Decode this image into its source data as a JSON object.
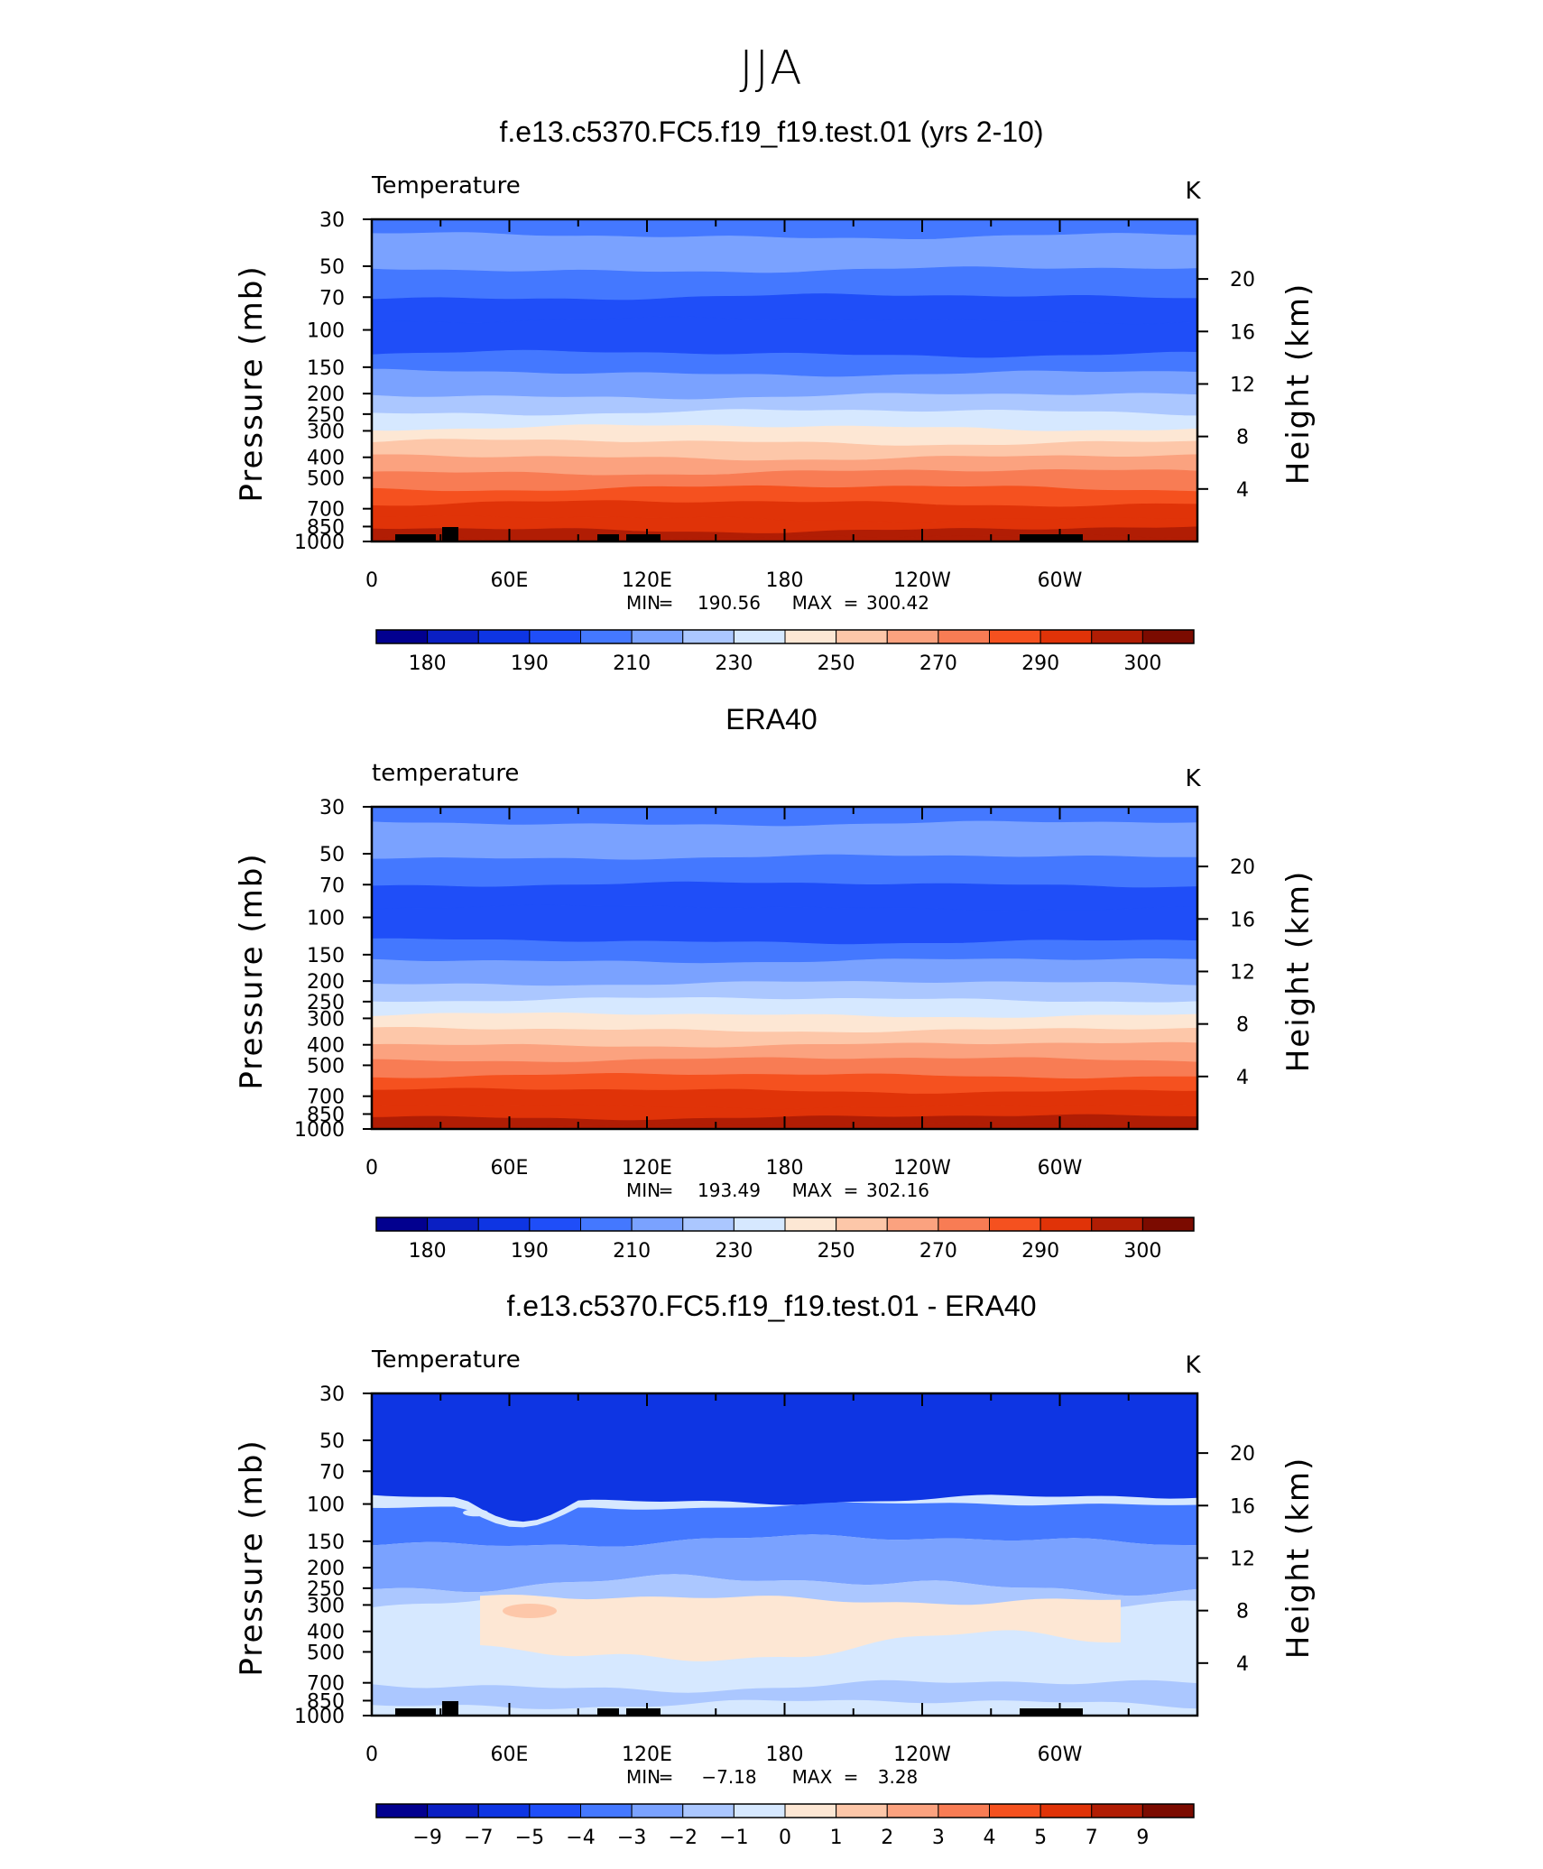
{
  "page_title": "JJA",
  "colors": {
    "abs_palette": [
      "#02008f",
      "#0a1fc3",
      "#0e35e3",
      "#1f4ef8",
      "#4478ff",
      "#7aa2ff",
      "#abc7ff",
      "#d6e8ff",
      "#fde7d4",
      "#fdc7a9",
      "#fba27f",
      "#f87c54",
      "#f5511f",
      "#e03308",
      "#b11d04",
      "#7b0b00"
    ],
    "diff_palette": [
      "#02008f",
      "#0a1fc3",
      "#0e35e3",
      "#1f4ef8",
      "#4478ff",
      "#7aa2ff",
      "#abc7ff",
      "#d6e8ff",
      "#fde7d4",
      "#fdc7a9",
      "#fba27f",
      "#f87c54",
      "#f5511f",
      "#e03308",
      "#b11d04",
      "#7b0b00"
    ],
    "topo": "#000000"
  },
  "chart_data": [
    {
      "type": "contour",
      "title": "f.e13.c5370.FC5.f19_f19.test.01 (yrs 2-10)",
      "variable": "Temperature",
      "units": "K",
      "ylabel": "Pressure (mb)",
      "ylabel_right": "Height (km)",
      "pressure_ticks": [
        30,
        50,
        70,
        100,
        150,
        200,
        250,
        300,
        400,
        500,
        700,
        850,
        1000
      ],
      "height_ticks": [
        20,
        16,
        12,
        8,
        4
      ],
      "x_ticks": [
        "0",
        "60E",
        "120E",
        "180",
        "120W",
        "60W"
      ],
      "stats": {
        "min_label": "MIN",
        "min": "190.56",
        "max_label": "MAX",
        "max": "300.42"
      },
      "colorbar_labels": [
        "180",
        "190",
        "210",
        "230",
        "250",
        "270",
        "290",
        "300"
      ],
      "profile": [
        5,
        4,
        4,
        3,
        3,
        4,
        5,
        6,
        7,
        8,
        9,
        10,
        11,
        12,
        13
      ],
      "topography": true
    },
    {
      "type": "contour",
      "title": "ERA40",
      "variable": "temperature",
      "units": "K",
      "ylabel": "Pressure (mb)",
      "ylabel_right": "Height (km)",
      "pressure_ticks": [
        30,
        50,
        70,
        100,
        150,
        200,
        250,
        300,
        400,
        500,
        700,
        850,
        1000
      ],
      "height_ticks": [
        20,
        16,
        12,
        8,
        4
      ],
      "x_ticks": [
        "0",
        "60E",
        "120E",
        "180",
        "120W",
        "60W"
      ],
      "stats": {
        "min_label": "MIN",
        "min": "193.49",
        "max_label": "MAX",
        "max": "302.16"
      },
      "colorbar_labels": [
        "180",
        "190",
        "210",
        "230",
        "250",
        "270",
        "290",
        "300"
      ],
      "profile": [
        5,
        4,
        4,
        3,
        4,
        5,
        6,
        7,
        8,
        9,
        10,
        11,
        12,
        13
      ],
      "topography": false
    },
    {
      "type": "contour",
      "title": "f.e13.c5370.FC5.f19_f19.test.01 - ERA40",
      "variable": "Temperature",
      "units": "K",
      "ylabel": "Pressure (mb)",
      "ylabel_right": "Height (km)",
      "pressure_ticks": [
        30,
        50,
        70,
        100,
        150,
        200,
        250,
        300,
        400,
        500,
        700,
        850,
        1000
      ],
      "height_ticks": [
        20,
        16,
        12,
        8,
        4
      ],
      "x_ticks": [
        "0",
        "60E",
        "120E",
        "180",
        "120W",
        "60W"
      ],
      "stats": {
        "min_label": "MIN",
        "min": "−7.18",
        "max_label": "MAX",
        "max": "3.28"
      },
      "colorbar_labels": [
        "−9",
        "−7",
        "−5",
        "−4",
        "−3",
        "−2",
        "−1",
        "0",
        "1",
        "2",
        "3",
        "4",
        "5",
        "7",
        "9"
      ],
      "profile": [
        2,
        3,
        5,
        6,
        6,
        7,
        8,
        7,
        6
      ],
      "topography": true
    }
  ]
}
